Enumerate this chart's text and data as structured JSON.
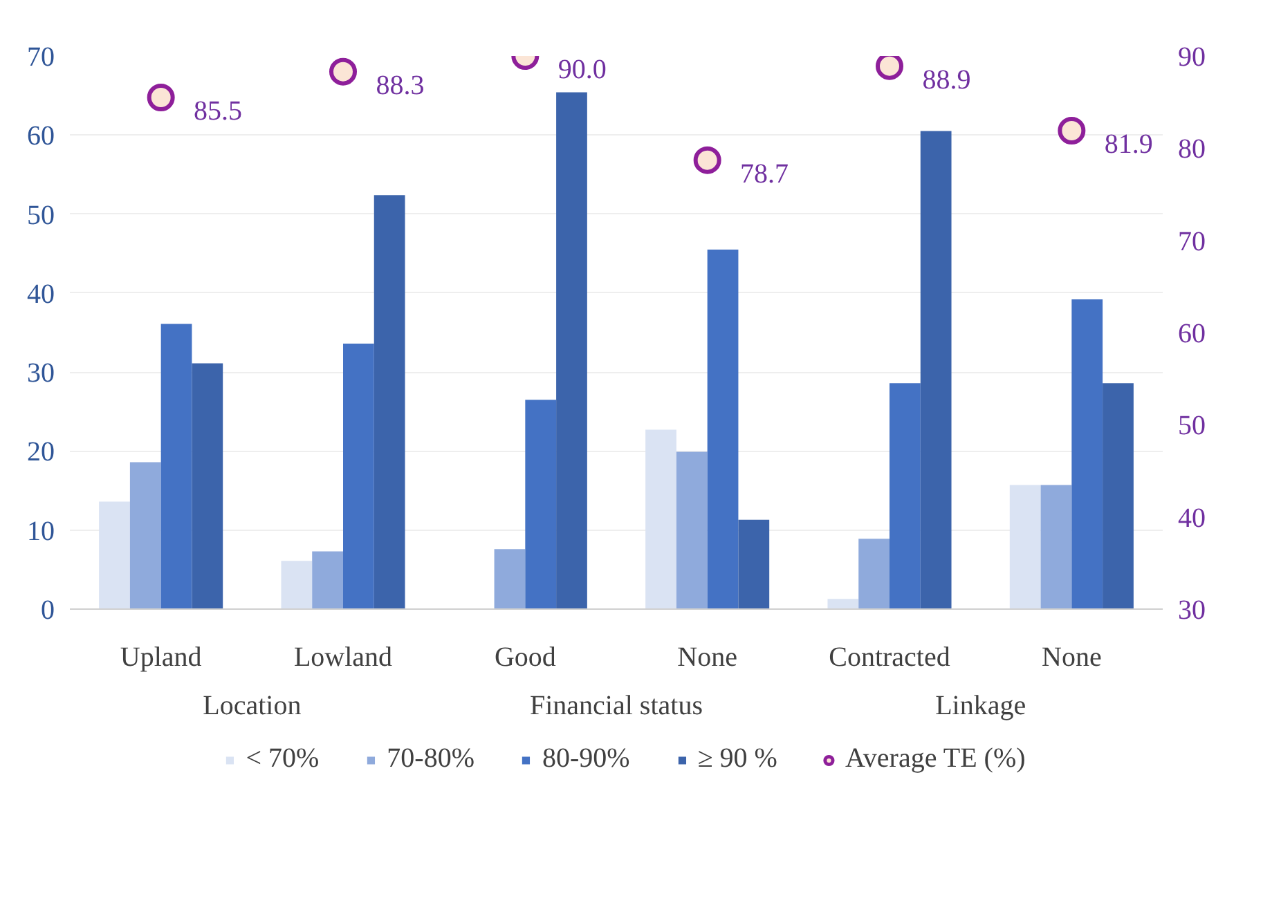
{
  "chart_data": {
    "type": "bar",
    "categories": [
      "Upland",
      "Lowland",
      "Good",
      "None",
      "Contracted",
      "None"
    ],
    "annotations": [
      "Location",
      "Financial status",
      "Linkage"
    ],
    "series": [
      {
        "name": "< 70%",
        "color": "#dae3f3",
        "values": [
          13.6,
          6.1,
          0,
          22.7,
          1.3,
          15.7
        ]
      },
      {
        "name": "70-80%",
        "color": "#8faadc",
        "values": [
          18.6,
          7.3,
          7.6,
          19.9,
          8.9,
          15.7
        ]
      },
      {
        "name": "80-90%",
        "color": "#4472c4",
        "values": [
          36.1,
          33.6,
          26.5,
          45.5,
          28.6,
          39.2
        ]
      },
      {
        "name": "≥ 90 %",
        "color": "#3c64ab",
        "values": [
          31.1,
          52.4,
          65.4,
          11.3,
          60.5,
          28.6
        ]
      },
      {
        "name": "Average TE (%)",
        "type": "scatter",
        "axis": "y2",
        "color": "#8e1f9a",
        "marker": "circle",
        "values": [
          85.5,
          88.3,
          90.0,
          78.7,
          88.9,
          81.9
        ],
        "value_labels": [
          "85.5",
          "88.3",
          "90.0",
          "78.7",
          "88.9",
          "81.9"
        ]
      }
    ],
    "ylim": [
      0,
      70
    ],
    "yticks": [
      0,
      10,
      20,
      30,
      40,
      50,
      60,
      70
    ],
    "y2lim": [
      30,
      90
    ],
    "y2ticks": [
      30,
      40,
      50,
      60,
      70,
      80,
      90
    ],
    "grid": "y",
    "legend": "bottom"
  }
}
